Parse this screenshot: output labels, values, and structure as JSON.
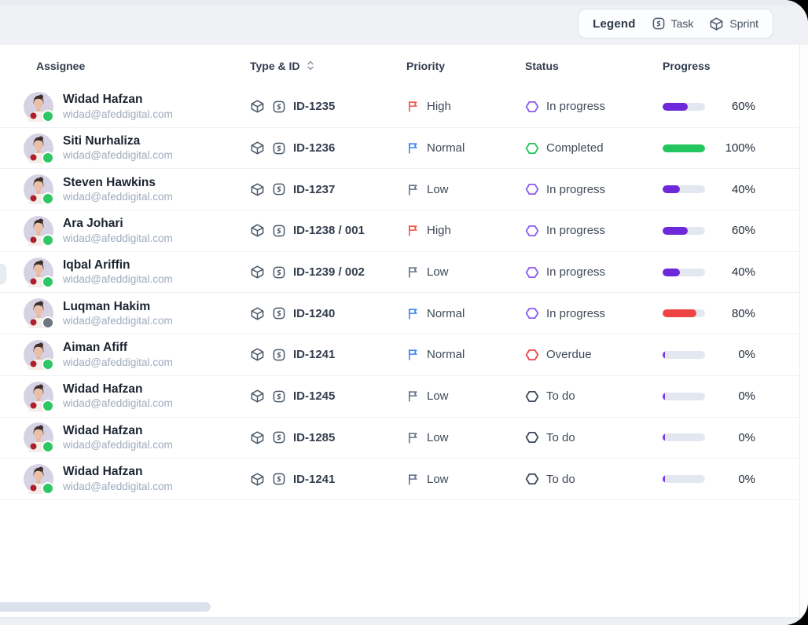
{
  "legend": {
    "label": "Legend",
    "items": [
      {
        "icon": "task-icon",
        "label": "Task"
      },
      {
        "icon": "sprint-icon",
        "label": "Sprint"
      }
    ]
  },
  "table": {
    "columns": [
      "Assignee",
      "Type & ID",
      "Priority",
      "Status",
      "Progress"
    ],
    "sorted_column": "Type & ID",
    "rows": [
      {
        "name": "Widad Hafzan",
        "email": "widad@afeddigital.com",
        "type": "sprint",
        "id": "ID-1235",
        "priority": "High",
        "priority_color": "#f0564b",
        "status": "In progress",
        "status_color": "#8b5cf6",
        "progress_pct": 60,
        "progress_label": "60%",
        "progress_color": "#6d28d9",
        "presence": "online",
        "presence_color": "#2fc765"
      },
      {
        "name": "Siti Nurhaliza",
        "email": "widad@afeddigital.com",
        "type": "task",
        "id": "ID-1236",
        "priority": "Normal",
        "priority_color": "#3c83f6",
        "status": "Completed",
        "status_color": "#22c55e",
        "progress_pct": 100,
        "progress_label": "100%",
        "progress_color": "#22c55e",
        "presence": "online",
        "presence_color": "#2fc765"
      },
      {
        "name": "Steven Hawkins",
        "email": "widad@afeddigital.com",
        "type": "task",
        "id": "ID-1237",
        "priority": "Low",
        "priority_color": "#64748b",
        "status": "In progress",
        "status_color": "#8b5cf6",
        "progress_pct": 40,
        "progress_label": "40%",
        "progress_color": "#6d28d9",
        "presence": "online",
        "presence_color": "#2fc765"
      },
      {
        "name": "Ara Johari",
        "email": "widad@afeddigital.com",
        "type": "task",
        "id": "ID-1238 / 001",
        "priority": "High",
        "priority_color": "#f0564b",
        "status": "In progress",
        "status_color": "#8b5cf6",
        "progress_pct": 60,
        "progress_label": "60%",
        "progress_color": "#6d28d9",
        "presence": "online",
        "presence_color": "#2fc765"
      },
      {
        "name": "Iqbal Ariffin",
        "email": "widad@afeddigital.com",
        "type": "task",
        "id": "ID-1239 / 002",
        "priority": "Low",
        "priority_color": "#64748b",
        "status": "In progress",
        "status_color": "#8b5cf6",
        "progress_pct": 40,
        "progress_label": "40%",
        "progress_color": "#6d28d9",
        "presence": "online",
        "presence_color": "#2fc765"
      },
      {
        "name": "Luqman Hakim",
        "email": "widad@afeddigital.com",
        "type": "task",
        "id": "ID-1240",
        "priority": "Normal",
        "priority_color": "#3c83f6",
        "status": "In progress",
        "status_color": "#8b5cf6",
        "progress_pct": 80,
        "progress_label": "80%",
        "progress_color": "#ef4444",
        "presence": "away",
        "presence_color": "#6e7781"
      },
      {
        "name": "Aiman Afiff",
        "email": "widad@afeddigital.com",
        "type": "task",
        "id": "ID-1241",
        "priority": "Normal",
        "priority_color": "#3c83f6",
        "status": "Overdue",
        "status_color": "#ef4444",
        "progress_pct": 0,
        "progress_label": "0%",
        "progress_color": "#7c3aed",
        "presence": "online",
        "presence_color": "#2fc765"
      },
      {
        "name": "Widad Hafzan",
        "email": "widad@afeddigital.com",
        "type": "task",
        "id": "ID-1245",
        "priority": "Low",
        "priority_color": "#64748b",
        "status": "To do",
        "status_color": "#3f4a5c",
        "progress_pct": 0,
        "progress_label": "0%",
        "progress_color": "#7c3aed",
        "presence": "online",
        "presence_color": "#2fc765"
      },
      {
        "name": "Widad Hafzan",
        "email": "widad@afeddigital.com",
        "type": "task",
        "id": "ID-1285",
        "priority": "Low",
        "priority_color": "#64748b",
        "status": "To do",
        "status_color": "#3f4a5c",
        "progress_pct": 0,
        "progress_label": "0%",
        "progress_color": "#7c3aed",
        "presence": "online",
        "presence_color": "#2fc765"
      },
      {
        "name": "Widad Hafzan",
        "email": "widad@afeddigital.com",
        "type": "task",
        "id": "ID-1241",
        "priority": "Low",
        "priority_color": "#64748b",
        "status": "To do",
        "status_color": "#3f4a5c",
        "progress_pct": 0,
        "progress_label": "0%",
        "progress_color": "#7c3aed",
        "presence": "online",
        "presence_color": "#2fc765"
      }
    ]
  }
}
